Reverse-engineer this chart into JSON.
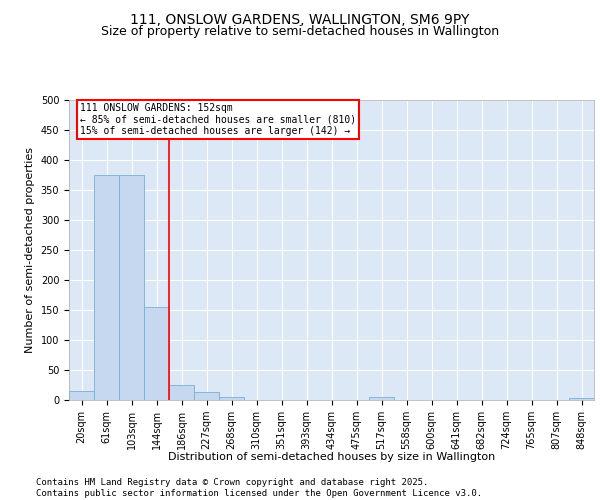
{
  "title_line1": "111, ONSLOW GARDENS, WALLINGTON, SM6 9PY",
  "title_line2": "Size of property relative to semi-detached houses in Wallington",
  "xlabel": "Distribution of semi-detached houses by size in Wallington",
  "ylabel": "Number of semi-detached properties",
  "footer": "Contains HM Land Registry data © Crown copyright and database right 2025.\nContains public sector information licensed under the Open Government Licence v3.0.",
  "bin_labels": [
    "20sqm",
    "61sqm",
    "103sqm",
    "144sqm",
    "186sqm",
    "227sqm",
    "268sqm",
    "310sqm",
    "351sqm",
    "393sqm",
    "434sqm",
    "475sqm",
    "517sqm",
    "558sqm",
    "600sqm",
    "641sqm",
    "682sqm",
    "724sqm",
    "765sqm",
    "807sqm",
    "848sqm"
  ],
  "bar_values": [
    15,
    375,
    375,
    155,
    25,
    13,
    5,
    0,
    0,
    0,
    0,
    0,
    5,
    0,
    0,
    0,
    0,
    0,
    0,
    0,
    4
  ],
  "bar_color": "#c5d8f0",
  "bar_edge_color": "#7aafd4",
  "vline_x": 3.5,
  "vline_color": "red",
  "subject_property_label": "111 ONSLOW GARDENS: 152sqm",
  "pct_smaller": "85% of semi-detached houses are smaller (810)",
  "pct_larger": "15% of semi-detached houses are larger (142)",
  "annotation_box_edge_color": "red",
  "ylim": [
    0,
    500
  ],
  "yticks": [
    0,
    50,
    100,
    150,
    200,
    250,
    300,
    350,
    400,
    450,
    500
  ],
  "bg_color": "#dce8f5",
  "grid_color": "#ffffff",
  "title_fontsize": 10,
  "subtitle_fontsize": 9,
  "axis_label_fontsize": 8,
  "tick_fontsize": 7,
  "footer_fontsize": 6.5
}
